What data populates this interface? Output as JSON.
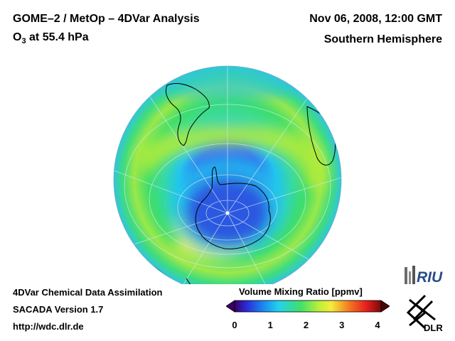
{
  "header": {
    "title_line1": "GOME–2 / MetOp – 4DVar Analysis",
    "title_line2_prefix": "O",
    "title_line2_sub": "3",
    "title_line2_suffix": " at 55.4 hPa",
    "date": "Nov 06, 2008, 12:00 GMT",
    "hemisphere": "Southern Hemisphere"
  },
  "footer": {
    "line1": "4DVar Chemical Data Assimilation",
    "line2": "SACADA Version 1.7",
    "line3": "http://wdc.dlr.de"
  },
  "colorbar": {
    "title": "Volume Mixing Ratio [ppmv]",
    "ticks": [
      "0",
      "1",
      "2",
      "3",
      "4"
    ],
    "range": [
      0,
      4
    ]
  },
  "logos": {
    "riu": "RIU",
    "dlr": "DLR"
  },
  "colors": {
    "ozone_hole": "#2a52e0",
    "collar": "#20c8ee",
    "midlat": "#3ede7a",
    "band": "#b6ec3a",
    "yellow": "#f4f040"
  }
}
